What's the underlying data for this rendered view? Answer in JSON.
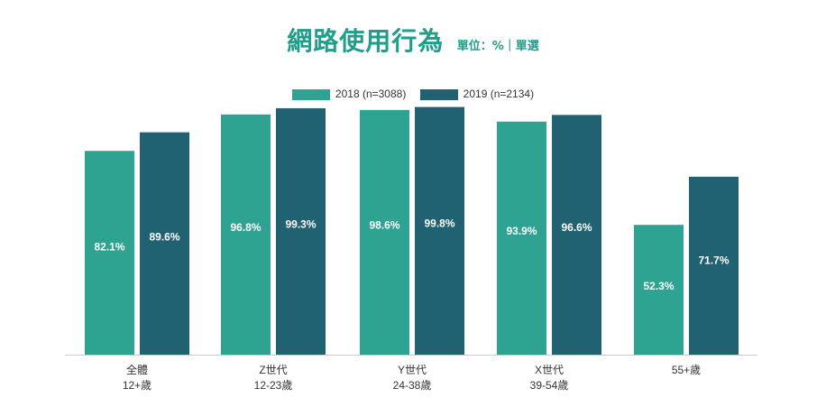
{
  "header": {
    "title": "網路使用行為",
    "unit": "單位：%｜單選"
  },
  "colors": {
    "series_2018": "#2ea391",
    "series_2019": "#206272",
    "title": "#1f9e8a",
    "axis": "#cccccc"
  },
  "chart_data": {
    "type": "bar",
    "title": "網路使用行為",
    "subtitle": "單位：%｜單選",
    "categories": [
      [
        "全體",
        "12+歲"
      ],
      [
        "Z世代",
        "12-23歲"
      ],
      [
        "Y世代",
        "24-38歲"
      ],
      [
        "X世代",
        "39-54歲"
      ],
      [
        "55+歲"
      ]
    ],
    "series": [
      {
        "name": "2018 (n=3088)",
        "values": [
          82.1,
          96.8,
          98.6,
          93.9,
          52.3
        ],
        "labels": [
          "82.1%",
          "96.8%",
          "98.6%",
          "93.9%",
          "52.3%"
        ]
      },
      {
        "name": "2019 (n=2134)",
        "values": [
          89.6,
          99.3,
          99.8,
          96.6,
          71.7
        ],
        "labels": [
          "89.6%",
          "99.3%",
          "99.8%",
          "96.6%",
          "71.7%"
        ]
      }
    ],
    "ylim": [
      0,
      100
    ],
    "grid": false,
    "legend_position": "top-center"
  }
}
